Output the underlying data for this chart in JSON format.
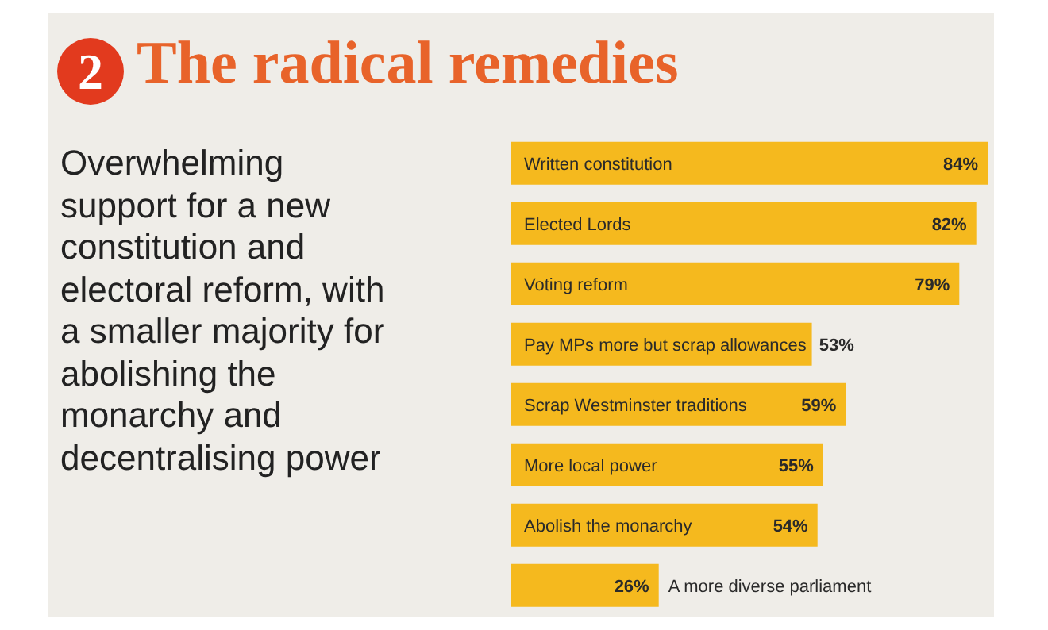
{
  "chart_data": {
    "type": "bar",
    "orientation": "horizontal",
    "title": "The radical remedies",
    "subtitle": "Overwhelming support for a new constitution and electoral reform, with a smaller majority for abolishing the monarchy and decentralising power",
    "annotations": [
      "2"
    ],
    "categories": [
      "Written constitution",
      "Elected Lords",
      "Voting reform",
      "Pay MPs more but scrap allowances",
      "Scrap Westminster traditions",
      "More local power",
      "Abolish the monarchy",
      "A more diverse parliament"
    ],
    "values": [
      84,
      82,
      79,
      53,
      59,
      55,
      54,
      26
    ],
    "value_labels": [
      "84%",
      "82%",
      "79%",
      "53%",
      "59%",
      "55%",
      "54%",
      "26%"
    ],
    "color": "#f5b91e",
    "tick_labels": false
  }
}
